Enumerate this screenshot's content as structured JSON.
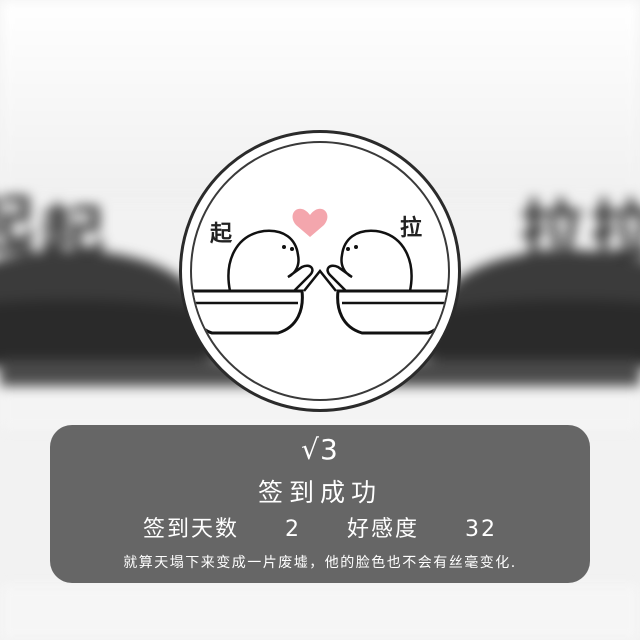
{
  "background": {
    "left_char": "起",
    "right_char": "拉"
  },
  "avatar": {
    "left_label": "起",
    "right_label": "拉",
    "heart_color": "#f4a6ad"
  },
  "card": {
    "check": "√3",
    "status": "签到成功",
    "days_label": "签到天数",
    "days_value": "2",
    "favor_label": "好感度",
    "favor_value": "32",
    "quote": "就算天塌下来变成一片废墟，他的脸色也不会有丝毫变化."
  },
  "colors": {
    "card_bg": "#5a5a5a",
    "text": "#ffffff"
  }
}
